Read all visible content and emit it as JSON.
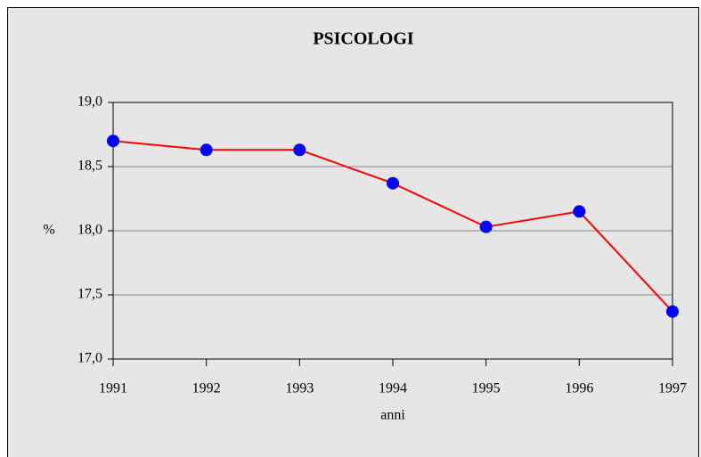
{
  "chart_data": {
    "type": "line",
    "title": "PSICOLOGI",
    "x_label": "anni",
    "y_label": "%",
    "x": [
      1991,
      1992,
      1993,
      1994,
      1995,
      1996,
      1997
    ],
    "series": [
      {
        "name": "PSICOLOGI",
        "color": "#ff0000",
        "marker_color": "#0000ff",
        "values": [
          18.7,
          18.63,
          18.63,
          18.37,
          18.03,
          18.15,
          17.37
        ]
      }
    ],
    "xlim": [
      1991,
      1997
    ],
    "xticks": [
      1991,
      1992,
      1993,
      1994,
      1995,
      1996,
      1997
    ],
    "ylim": [
      17,
      19
    ],
    "yticks": [
      {
        "value": 17,
        "label": "17,0"
      },
      {
        "value": 17.5,
        "label": "17,5"
      },
      {
        "value": 18,
        "label": "18,0"
      },
      {
        "value": 18.5,
        "label": "18,5"
      },
      {
        "value": 19,
        "label": "19,0"
      }
    ],
    "grid": true
  }
}
